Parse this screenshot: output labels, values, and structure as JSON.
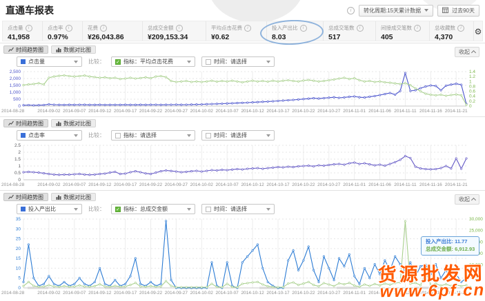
{
  "page": {
    "title": "直通车报表"
  },
  "toolbar": {
    "conversion_cycle": "转化周期:15天累计数据",
    "date_range": "过去90天"
  },
  "stats": [
    {
      "label": "点击量",
      "value": "41,958"
    },
    {
      "label": "点击率",
      "value": "0.97%"
    },
    {
      "label": "花费",
      "value": "¥26,043.86"
    },
    {
      "label": "总成交金额",
      "value": "¥209,153.34"
    },
    {
      "label": "平均点击花费",
      "value": "¥0.62"
    },
    {
      "label": "投入产出比",
      "value": "8.03"
    },
    {
      "label": "总成交笔数",
      "value": "517"
    },
    {
      "label": "间接成交笔数",
      "value": "405"
    },
    {
      "label": "总收藏数",
      "value": "4,370"
    }
  ],
  "panels": [
    {
      "tab_trend": "时间趋势图",
      "tab_compare": "数据对比图",
      "metric": "点击量",
      "compare_label": "比较：",
      "compare_metric": "指标：平均点击花费",
      "compare_metric_checked": true,
      "compare_time": "时间：请选择",
      "compare_time_checked": false,
      "collapse_label": "收起",
      "chart_data": {
        "type": "line",
        "x_labels": [
          "2014-08-28",
          "2014-09-02",
          "2014-09-07",
          "2014-09-12",
          "2014-09-17",
          "2014-09-22",
          "2014-09-27",
          "2014-10-02",
          "2014-10-07",
          "2014-10-12",
          "2014-10-17",
          "2014-10-22",
          "2014-10-27",
          "2014-11-01",
          "2014-11-06",
          "2014-11-11",
          "2014-11-16",
          "2014-11-21"
        ],
        "left_axis": {
          "min": 0,
          "max": 2500,
          "tick_labels": [
            "0",
            "500",
            "1,000",
            "1,500",
            "2,000",
            "2,500"
          ],
          "color": "#4a52c9"
        },
        "right_axis": {
          "min": 0,
          "max": 1.4,
          "tick_labels": [
            "0",
            "0.2",
            "0.4",
            "0.6",
            "0.8",
            "1",
            "1.2",
            "1.4"
          ],
          "color": "#7ab648"
        },
        "series": [
          {
            "name": "点击量",
            "axis": "left",
            "color": "#4953cc",
            "values": [
              60,
              75,
              55,
              65,
              80,
              130,
              100,
              90,
              85,
              95,
              90,
              100,
              95,
              88,
              92,
              95,
              85,
              90,
              88,
              92,
              95,
              88,
              92,
              96,
              90,
              95,
              100,
              92,
              96,
              100,
              105,
              95,
              100,
              108,
              115,
              125,
              140,
              150,
              160,
              175,
              190,
              205,
              220,
              235,
              250,
              270,
              290,
              310,
              330,
              350,
              375,
              400,
              425,
              450,
              480,
              510,
              540,
              570,
              545,
              580,
              610,
              640,
              600,
              630,
              670,
              700,
              640,
              620,
              680,
              730,
              800,
              870,
              950,
              830,
              1100,
              2400,
              1100,
              1150,
              1300,
              1420,
              1500,
              1460,
              1150,
              1480,
              1560,
              1620,
              1550,
              150
            ]
          },
          {
            "name": "平均点击花费",
            "axis": "right",
            "color": "#a9d08e",
            "values": [
              0.85,
              0.88,
              0.9,
              0.93,
              0.88,
              1.15,
              1.2,
              1.23,
              1.25,
              1.22,
              1.2,
              1.22,
              1.24,
              1.2,
              1.18,
              1.15,
              1.17,
              1.13,
              1.15,
              1.1,
              1.12,
              1.15,
              1.12,
              1.14,
              1.17,
              1.13,
              1.2,
              1.22,
              1.18,
              1.02,
              0.98,
              1,
              1.02,
              0.98,
              1,
              0.98,
              1,
              1.03,
              0.99,
              1.02,
              1,
              1.03,
              1,
              0.97,
              1,
              1.03,
              1,
              1.02,
              0.99,
              1.03,
              1,
              1.03,
              1.05,
              1.02,
              1,
              1.04,
              1.06,
              1.03,
              1,
              1.02,
              1.05,
              1.08,
              1.12,
              1.15,
              1.1,
              1.13,
              1.05,
              1,
              1.02,
              0.98,
              1,
              0.97,
              0.95,
              0.92,
              0.9,
              0.93,
              0.85,
              0.72,
              0.6,
              0.5,
              0.46,
              0.44,
              0.46,
              0.42,
              0.45,
              0.47,
              0.44,
              0.05
            ]
          }
        ]
      }
    },
    {
      "tab_trend": "时间趋势图",
      "tab_compare": "数据对比图",
      "metric": "点击率",
      "compare_label": "比较：",
      "compare_metric": "指标：请选择",
      "compare_metric_checked": false,
      "compare_time": "时间：请选择",
      "compare_time_checked": false,
      "collapse_label": "",
      "chart_data": {
        "type": "line",
        "x_labels": [
          "2014-08-28",
          "2014-09-02",
          "2014-09-07",
          "2014-09-12",
          "2014-09-17",
          "2014-09-22",
          "2014-09-27",
          "2014-10-02",
          "2014-10-07",
          "2014-10-12",
          "2014-10-17",
          "2014-10-22",
          "2014-10-27",
          "2014-11-01",
          "2014-11-06",
          "2014-11-11",
          "2014-11-16",
          "2014-11-21"
        ],
        "left_axis": {
          "min": 0,
          "max": 2.5,
          "tick_labels": [
            "0",
            "0.5",
            "1",
            "1.5",
            "2",
            "2.5"
          ],
          "color": "#55565a"
        },
        "series": [
          {
            "name": "点击率",
            "axis": "left",
            "color": "#6257c5",
            "values": [
              0.55,
              0.57,
              0.55,
              0.52,
              0.47,
              0.42,
              0.38,
              0.36,
              0.38,
              0.37,
              0.4,
              0.42,
              0.38,
              0.36,
              0.38,
              0.42,
              0.45,
              0.52,
              0.58,
              0.42,
              0.45,
              0.55,
              0.62,
              0.55,
              0.46,
              0.42,
              0.52,
              0.62,
              0.68,
              0.64,
              0.6,
              0.55,
              0.58,
              0.62,
              0.65,
              0.6,
              0.65,
              0.7,
              0.68,
              0.72,
              0.7,
              0.74,
              0.78,
              0.75,
              0.8,
              0.82,
              0.85,
              0.8,
              0.85,
              0.88,
              0.92,
              0.9,
              0.95,
              0.92,
              0.98,
              1,
              1.02,
              0.98,
              1.05,
              1.02,
              1.08,
              1.12,
              1.15,
              1.1,
              1.2,
              1.25,
              1.15,
              1.2,
              1.12,
              1.05,
              1.1,
              1.02,
              1.15,
              1.28,
              1.45,
              1.72,
              1.58,
              0.95,
              0.82,
              0.78,
              0.76,
              0.78,
              0.85,
              1,
              0.82,
              1.55,
              0.8,
              1.55
            ]
          }
        ]
      }
    },
    {
      "tab_trend": "时间趋势图",
      "tab_compare": "数据对比图",
      "metric": "投入产出比",
      "compare_label": "比较：",
      "compare_metric": "指标：总成交金额",
      "compare_metric_checked": true,
      "compare_time": "时间：请选择",
      "compare_time_checked": false,
      "collapse_label": "收起",
      "chart_data": {
        "type": "line",
        "x_labels": [
          "2014-08-28",
          "2014-09-02",
          "2014-09-07",
          "2014-09-12",
          "2014-09-17",
          "2014-09-22",
          "2014-09-27",
          "2014-10-02",
          "2014-10-07",
          "2014-10-12",
          "2014-10-17",
          "2014-10-22",
          "2014-10-27",
          "2014-11-01",
          "2014-11-06",
          "2014-11-11",
          "2014-11-16",
          "2014-11-21"
        ],
        "left_axis": {
          "min": 0,
          "max": 35,
          "tick_labels": [
            "0",
            "5",
            "10",
            "15",
            "20",
            "25",
            "30",
            "35"
          ],
          "color": "#2b7bd4"
        },
        "right_axis": {
          "min": 0,
          "max": 30000,
          "tick_labels": [
            "0",
            "5,000",
            "10,000",
            "15,000",
            "20,000",
            "25,000",
            "30,000"
          ],
          "color": "#7ab648"
        },
        "series": [
          {
            "name": "投入产出比",
            "axis": "left",
            "color": "#2b7bd4",
            "values": [
              3,
              22,
              5,
              1,
              2,
              6,
              2,
              1,
              3,
              1,
              2,
              5,
              2,
              1,
              3,
              10,
              2,
              1,
              4,
              1,
              2,
              6,
              15,
              2,
              1,
              3,
              1,
              2,
              34,
              4,
              0,
              0,
              0,
              0,
              0,
              0,
              0,
              13,
              1,
              0,
              13,
              1,
              0,
              13,
              16,
              19,
              22,
              10,
              3,
              1,
              0,
              0,
              14,
              19,
              9,
              14,
              21,
              9,
              3,
              16,
              10,
              4,
              15,
              11,
              17,
              6,
              2,
              10,
              5,
              12,
              7,
              14,
              9,
              16,
              12,
              8,
              13,
              6,
              11,
              11.8,
              7,
              12,
              5,
              9,
              4,
              7,
              3,
              5
            ]
          },
          {
            "name": "总成交金额",
            "axis": "right",
            "color": "#a9d08e",
            "values": [
              800,
              2600,
              900,
              500,
              600,
              1200,
              600,
              500,
              800,
              500,
              600,
              1100,
              600,
              500,
              800,
              1600,
              600,
              500,
              900,
              500,
              600,
              1300,
              2200,
              600,
              500,
              800,
              500,
              600,
              3000,
              900,
              300,
              300,
              300,
              300,
              300,
              300,
              300,
              1800,
              400,
              300,
              1800,
              400,
              300,
              1800,
              2100,
              2400,
              2600,
              1500,
              700,
              400,
              300,
              300,
              1900,
              2400,
              1300,
              1900,
              2600,
              1300,
              700,
              2100,
              1500,
              800,
              2000,
              1600,
              2200,
              1000,
              500,
              1500,
              900,
              1700,
              1100,
              1900,
              1400,
              2100,
              2400,
              29000,
              1800,
              2200,
              1200,
              6900,
              1300,
              1900,
              1000,
              1600,
              900,
              1300,
              800,
              1200
            ]
          }
        ]
      }
    }
  ],
  "tooltip": {
    "roi_label": "投入产出比:",
    "roi_value": "11.77",
    "amount_label": "总成交金额:",
    "amount_value": "6,912.93"
  },
  "watermark": {
    "line1": "货源批发网",
    "line2": "www.6pf.cn"
  }
}
